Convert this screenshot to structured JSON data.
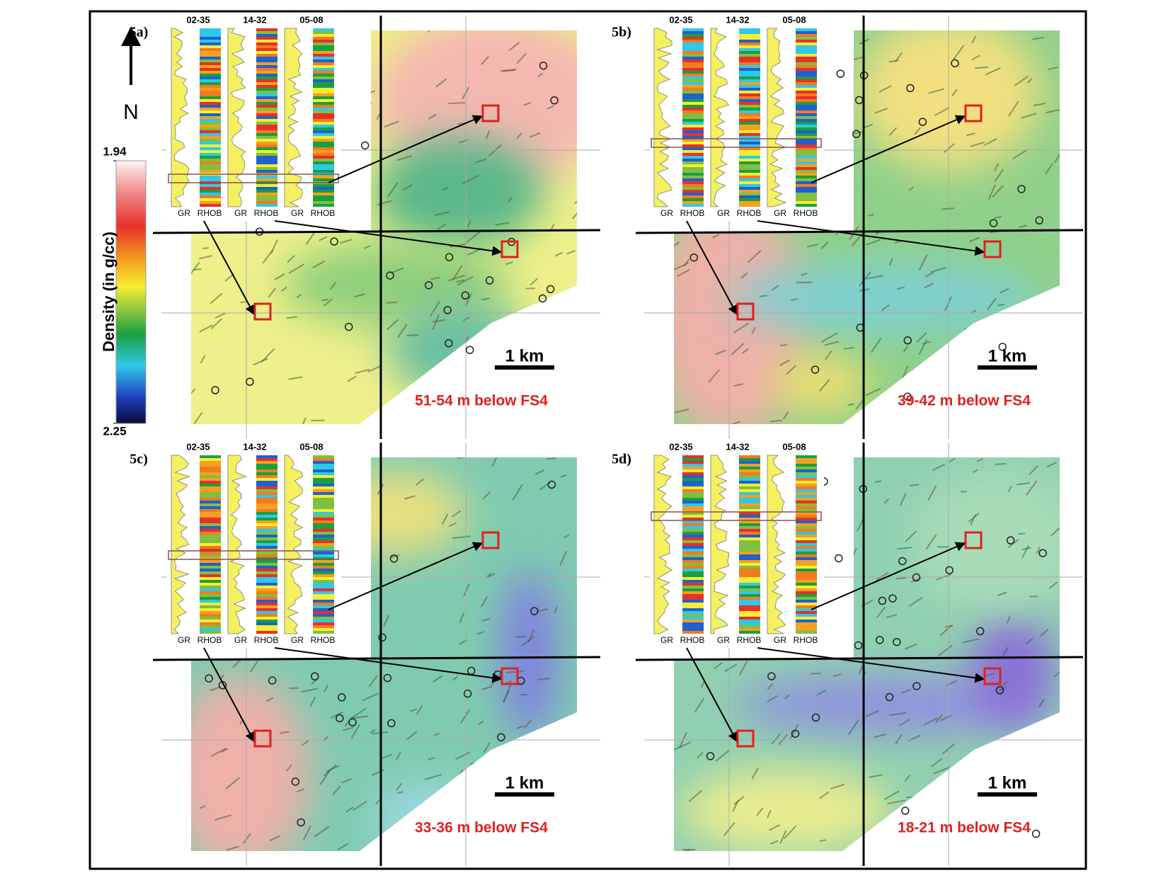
{
  "north": "N",
  "colorbar": {
    "title": "Density (in g/cc)",
    "ticks": [
      1.94,
      2.25
    ]
  },
  "panels": [
    {
      "label": "5a)",
      "caption": "51-54 m below FS4",
      "scale": "1 km",
      "wells": [
        {
          "name": "02-35",
          "tracks": [
            "GR",
            "RHOB"
          ]
        },
        {
          "name": "14-32",
          "tracks": [
            "GR",
            "RHOB"
          ]
        },
        {
          "name": "05-08",
          "tracks": [
            "GR",
            "RHOB"
          ]
        }
      ]
    },
    {
      "label": "5b)",
      "caption": "39-42 m below FS4",
      "scale": "1 km",
      "wells": [
        {
          "name": "02-35",
          "tracks": [
            "GR",
            "RHOB"
          ]
        },
        {
          "name": "14-32",
          "tracks": [
            "GR",
            "RHOB"
          ]
        },
        {
          "name": "05-08",
          "tracks": [
            "GR",
            "RHOB"
          ]
        }
      ]
    },
    {
      "label": "5c)",
      "caption": "33-36 m below FS4",
      "scale": "1 km",
      "wells": [
        {
          "name": "02-35",
          "tracks": [
            "GR",
            "RHOB"
          ]
        },
        {
          "name": "14-32",
          "tracks": [
            "GR",
            "RHOB"
          ]
        },
        {
          "name": "05-08",
          "tracks": [
            "GR",
            "RHOB"
          ]
        }
      ]
    },
    {
      "label": "5d)",
      "caption": "18-21 m below FS4",
      "scale": "1 km",
      "wells": [
        {
          "name": "02-35",
          "tracks": [
            "GR",
            "RHOB"
          ]
        },
        {
          "name": "14-32",
          "tracks": [
            "GR",
            "RHOB"
          ]
        },
        {
          "name": "05-08",
          "tracks": [
            "GR",
            "RHOB"
          ]
        }
      ]
    }
  ]
}
